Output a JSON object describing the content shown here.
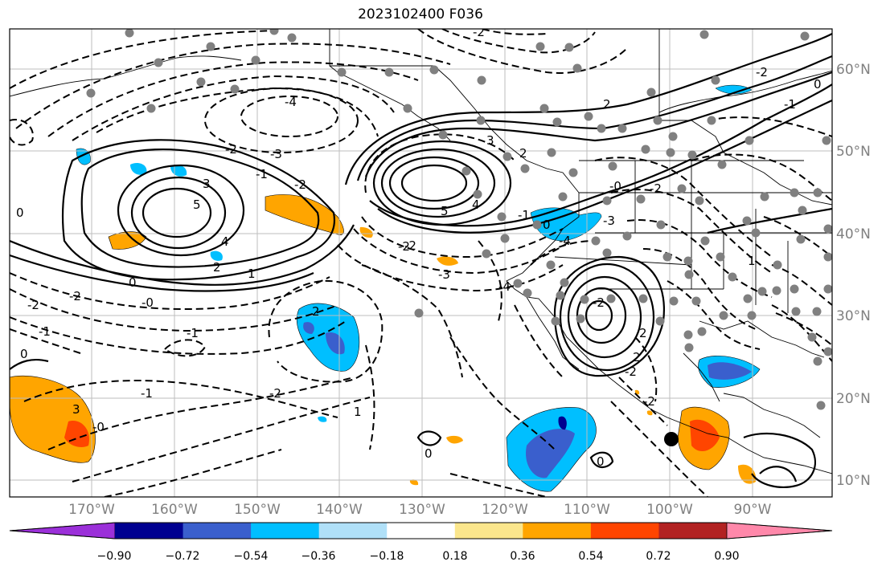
{
  "title": "2023102400 F036",
  "lat_labels": [
    "60°N",
    "50°N",
    "40°N",
    "30°N",
    "20°N",
    "10°N"
  ],
  "lon_labels": [
    "170°W",
    "160°W",
    "150°W",
    "140°W",
    "130°W",
    "120°W",
    "110°W",
    "100°W",
    "90°W"
  ],
  "colorbar": {
    "tick_labels": [
      "−0.90",
      "−0.72",
      "−0.54",
      "−0.36",
      "−0.18",
      "0.18",
      "0.36",
      "0.54",
      "0.72",
      "0.90"
    ],
    "colors": [
      "#9b30d9",
      "#000090",
      "#3a5fcd",
      "#00bfff",
      "#b0e0f8",
      "#ffffff",
      "#fbe68c",
      "#ffa500",
      "#ff4500",
      "#b22222",
      "#ff88aa"
    ]
  },
  "contour_labels": [
    "0",
    "-4",
    "-3",
    "-2",
    "-2",
    "-1",
    "3",
    "5",
    "4",
    "2",
    "1",
    "0",
    "-0",
    "-1",
    "-2",
    "-2",
    "-1",
    "2",
    "-1",
    "0",
    "-2",
    "-2",
    "-3",
    "-4",
    "5",
    "4",
    "3",
    "2",
    "2",
    "0",
    "-2",
    "-1",
    "-0",
    "-1",
    "-4",
    "-2",
    "2",
    "2",
    "-2",
    "0",
    "-2",
    "-3",
    "3",
    "1",
    "1",
    "-2",
    "-0",
    "0",
    "0",
    "-2",
    "-2"
  ],
  "station_marker": "station-dot"
}
